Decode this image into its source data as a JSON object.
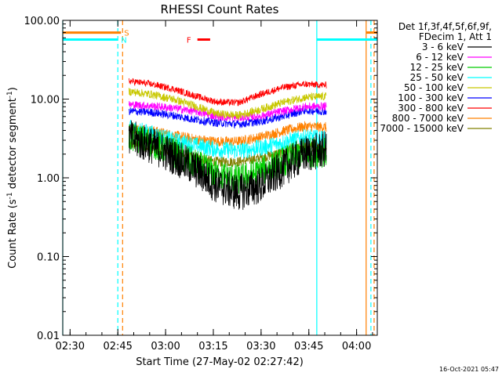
{
  "chart_data": {
    "type": "line",
    "title": "RHESSI Count Rates",
    "xlabel": "Start Time (27-May-02 02:27:42)",
    "ylabel_text": "Count Rate (s",
    "ylabel_exp": "-1",
    "ylabel_tail": " detector segment",
    "ylabel_exp2": "-1",
    "ylabel_close": ")",
    "y_scale": "log",
    "ylim": [
      0.01,
      100
    ],
    "xlim": [
      "02:27:42",
      "04:06:30"
    ],
    "x_ticks": [
      "02:30",
      "02:45",
      "03:00",
      "03:15",
      "03:30",
      "03:45",
      "04:00"
    ],
    "y_ticks": [
      "0.01",
      "0.10",
      "1.00",
      "10.00",
      "100.00"
    ],
    "legend_header": [
      "Det 1f,3f,4f,5f,6f,9f,",
      "FDecim 1, Att 1"
    ],
    "legend_placement": "right",
    "data_start": "02:48:30",
    "data_end": "03:50:30",
    "series": [
      {
        "name": "3 - 6 keV",
        "color": "#000000",
        "values": [
          3.2,
          2.6,
          1.9,
          1.3,
          0.8,
          0.65,
          0.8,
          1.3,
          2.0,
          2.3
        ]
      },
      {
        "name": "6 - 12 keV",
        "color": "#ff00ff",
        "values": [
          8.5,
          8.2,
          7.7,
          7.0,
          6.0,
          5.8,
          6.1,
          7.0,
          8.0,
          8.1
        ]
      },
      {
        "name": "12 - 25 keV",
        "color": "#00cc00",
        "values": [
          3.3,
          2.8,
          2.1,
          1.5,
          1.1,
          0.95,
          1.2,
          1.6,
          2.1,
          2.1
        ]
      },
      {
        "name": "25 - 50 keV",
        "color": "#00ffff",
        "values": [
          4.3,
          3.7,
          3.0,
          2.6,
          2.3,
          2.2,
          2.4,
          2.8,
          3.3,
          3.1
        ]
      },
      {
        "name": "50 - 100 keV",
        "color": "#c8c800",
        "values": [
          12.5,
          11.5,
          10.0,
          8.2,
          6.5,
          6.2,
          7.4,
          9.0,
          10.5,
          10.8
        ]
      },
      {
        "name": "100 - 300 keV",
        "color": "#0000ff",
        "values": [
          7.0,
          6.8,
          6.2,
          5.5,
          5.0,
          4.8,
          5.2,
          6.0,
          7.2,
          7.0
        ]
      },
      {
        "name": "300 - 800 keV",
        "color": "#ff0000",
        "values": [
          17.0,
          15.5,
          13.5,
          11.0,
          9.2,
          9.0,
          11.5,
          14.0,
          15.5,
          15.0
        ]
      },
      {
        "name": "800 - 7000 keV",
        "color": "#ff8000",
        "values": [
          4.3,
          4.0,
          3.5,
          3.1,
          2.9,
          2.9,
          3.3,
          3.9,
          4.5,
          4.4
        ]
      },
      {
        "name": "7000 - 15000 keV",
        "color": "#808000",
        "values": [
          2.7,
          2.4,
          2.1,
          1.8,
          1.6,
          1.6,
          1.8,
          2.1,
          2.5,
          2.4
        ]
      }
    ],
    "flags": [
      {
        "label": "S",
        "color": "#ff8000",
        "start": "02:27:42",
        "end": "02:46:00",
        "level": 70
      },
      {
        "label": "N",
        "color": "#00ffff",
        "start": "02:27:42",
        "end": "02:45:00",
        "level": 57
      },
      {
        "label": "F",
        "color": "#ff0000",
        "start": "03:10:00",
        "end": "03:14:00",
        "level": 57,
        "label_left": true
      },
      {
        "label": "",
        "color": "#ff8000",
        "start": "04:03:00",
        "end": "04:06:30",
        "level": 70
      },
      {
        "label": "",
        "color": "#00ffff",
        "start": "03:47:30",
        "end": "04:06:30",
        "level": 57
      }
    ],
    "vlines": [
      {
        "time": "02:27:42",
        "color": "#00ffff",
        "style": "solid"
      },
      {
        "time": "02:45:00",
        "color": "#00ffff",
        "style": "dashed"
      },
      {
        "time": "02:46:30",
        "color": "#ff8000",
        "style": "dashed"
      },
      {
        "time": "03:47:30",
        "color": "#00ffff",
        "style": "solid"
      },
      {
        "time": "04:03:00",
        "color": "#ff8000",
        "style": "solid"
      },
      {
        "time": "04:04:30",
        "color": "#00ffff",
        "style": "dashed"
      },
      {
        "time": "04:05:30",
        "color": "#ff8000",
        "style": "dashed"
      }
    ],
    "footer_stamp": "16-Oct-2021 05:47"
  }
}
